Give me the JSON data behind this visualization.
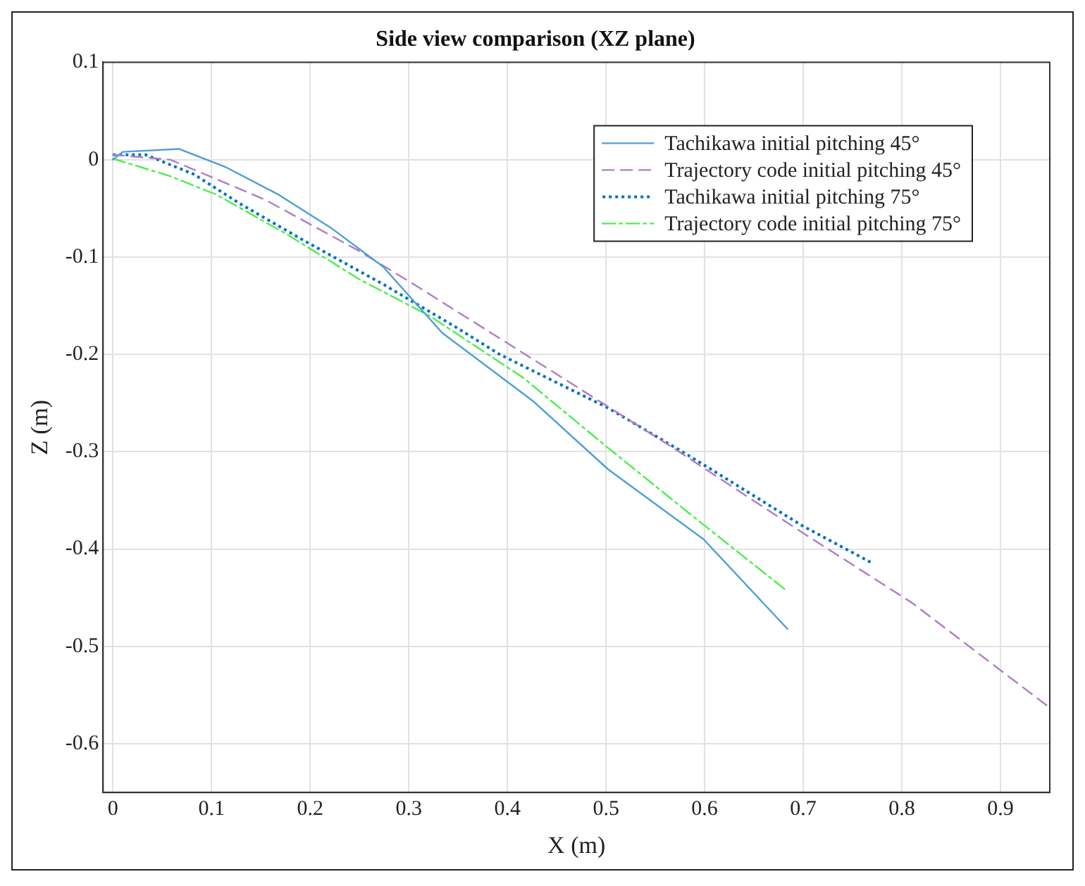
{
  "chart_data": {
    "type": "line",
    "title": "Side view comparison (XZ plane)",
    "xlabel": "X (m)",
    "ylabel": "Z (m)",
    "xlim": [
      -0.01,
      0.95
    ],
    "xticks": [
      0,
      0.1,
      0.2,
      0.3,
      0.4,
      0.5,
      0.6,
      0.7,
      0.8,
      0.9
    ],
    "ylim": [
      -0.65,
      0.1
    ],
    "yticks": [
      -0.6,
      -0.5,
      -0.4,
      -0.3,
      -0.2,
      -0.1,
      0,
      0.1
    ],
    "grid": true,
    "legend": "top right",
    "marker": "none",
    "series": [
      {
        "name": "Tachikawa initial pitching 45°",
        "color": "#4d9fd6",
        "line_style": "solid",
        "x": [
          0,
          0.01,
          0.067,
          0.115,
          0.168,
          0.221,
          0.274,
          0.296,
          0.334,
          0.426,
          0.502,
          0.599,
          0.684
        ],
        "values": [
          0,
          0.008,
          0.011,
          -0.008,
          -0.036,
          -0.07,
          -0.11,
          -0.135,
          -0.178,
          -0.248,
          -0.318,
          -0.39,
          -0.482
        ]
      },
      {
        "name": "Trajectory code initial pitching 45°",
        "color": "#b07cc6",
        "line_style": "dashed",
        "x": [
          0,
          0.058,
          0.154,
          0.25,
          0.305,
          0.44,
          0.565,
          0.699,
          0.81,
          0.95
        ],
        "values": [
          0.005,
          0,
          -0.041,
          -0.094,
          -0.128,
          -0.214,
          -0.294,
          -0.383,
          -0.455,
          -0.563
        ]
      },
      {
        "name": "Tachikawa initial pitching 75°",
        "color": "#0072bd",
        "line_style": "dotted",
        "x": [
          0,
          0.033,
          0.082,
          0.13,
          0.197,
          0.274,
          0.346,
          0.392,
          0.502,
          0.584,
          0.699,
          0.771
        ],
        "values": [
          0.005,
          0.005,
          -0.015,
          -0.046,
          -0.085,
          -0.128,
          -0.171,
          -0.2,
          -0.255,
          -0.304,
          -0.376,
          -0.415
        ]
      },
      {
        "name": "Trajectory code initial pitching 75°",
        "color": "#4cee4c",
        "line_style": "dashdot",
        "x": [
          0,
          0.058,
          0.105,
          0.177,
          0.25,
          0.322,
          0.416,
          0.502,
          0.584,
          0.681
        ],
        "values": [
          0.001,
          -0.017,
          -0.036,
          -0.077,
          -0.123,
          -0.161,
          -0.224,
          -0.296,
          -0.363,
          -0.441
        ]
      }
    ]
  }
}
